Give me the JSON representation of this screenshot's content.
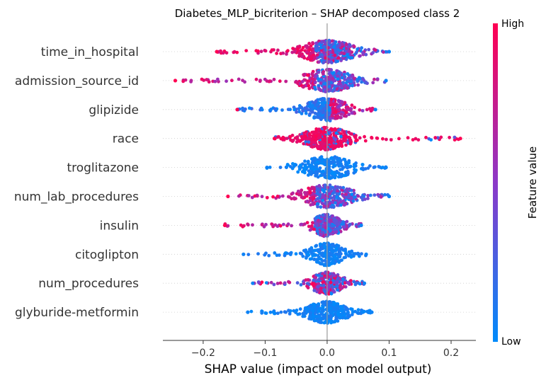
{
  "chart_data": {
    "type": "scatter",
    "subtype": "shap-beeswarm",
    "title": "Diabetes_MLP_bicriterion – SHAP decomposed class 2",
    "xlabel": "SHAP value (impact on model output)",
    "xlim": [
      -0.265,
      0.24
    ],
    "xticks": [
      -0.2,
      -0.1,
      0.0,
      0.1,
      0.2
    ],
    "xtick_labels": [
      "−0.2",
      "−0.1",
      "0.0",
      "0.1",
      "0.2"
    ],
    "colorbar": {
      "label": "Feature value",
      "high_label": "High",
      "low_label": "Low",
      "high_color": "#ff0052",
      "mid_color": "#8c38c8",
      "low_color": "#008bfb"
    },
    "features": [
      {
        "name": "time_in_hospital",
        "min": -0.178,
        "max": 0.1,
        "pattern": "high-negative",
        "density": 1.0
      },
      {
        "name": "admission_source_id",
        "min": -0.245,
        "max": 0.095,
        "pattern": "high-negative-mixed",
        "density": 0.8
      },
      {
        "name": "glipizide",
        "min": -0.145,
        "max": 0.078,
        "pattern": "high-positive",
        "density": 0.7
      },
      {
        "name": "race",
        "min": -0.085,
        "max": 0.215,
        "pattern": "high-dominant",
        "density": 0.9
      },
      {
        "name": "troglitazone",
        "min": -0.097,
        "max": 0.095,
        "pattern": "low-only",
        "density": 0.6
      },
      {
        "name": "num_lab_procedures",
        "min": -0.16,
        "max": 0.1,
        "pattern": "high-negative-mixed",
        "density": 0.8
      },
      {
        "name": "insulin",
        "min": -0.165,
        "max": 0.055,
        "pattern": "high-negative-mixed",
        "density": 0.8
      },
      {
        "name": "citoglipton",
        "min": -0.135,
        "max": 0.063,
        "pattern": "low-only",
        "density": 0.6
      },
      {
        "name": "num_procedures",
        "min": -0.12,
        "max": 0.06,
        "pattern": "mixed",
        "density": 0.7
      },
      {
        "name": "glyburide-metformin",
        "min": -0.128,
        "max": 0.072,
        "pattern": "low-only",
        "density": 0.8
      }
    ]
  }
}
